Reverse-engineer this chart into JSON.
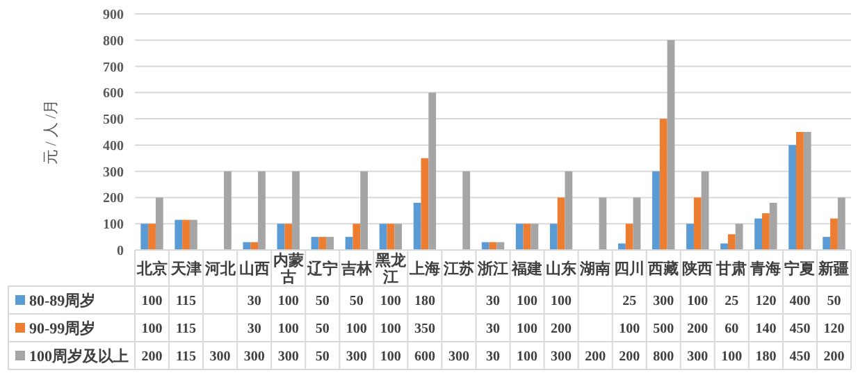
{
  "chart_data": {
    "type": "bar",
    "ylabel": "元 / 人 /月",
    "categories": [
      "北京",
      "天津",
      "河北",
      "山西",
      "内蒙古",
      "辽宁",
      "吉林",
      "黑龙江",
      "上海",
      "江苏",
      "浙江",
      "福建",
      "山东",
      "湖南",
      "四川",
      "西藏",
      "陕西",
      "甘肃",
      "青海",
      "宁夏",
      "新疆"
    ],
    "series": [
      {
        "name": "80-89周岁",
        "color": "#5b9bd5",
        "values": [
          100,
          115,
          null,
          30,
          100,
          50,
          50,
          100,
          180,
          null,
          30,
          100,
          100,
          null,
          25,
          300,
          100,
          25,
          120,
          400,
          50
        ]
      },
      {
        "name": "90-99周岁",
        "color": "#ed7d31",
        "values": [
          100,
          115,
          null,
          30,
          100,
          50,
          100,
          100,
          350,
          null,
          30,
          100,
          200,
          null,
          100,
          500,
          200,
          60,
          140,
          450,
          120
        ]
      },
      {
        "name": "100周岁及以上",
        "color": "#a5a5a5",
        "values": [
          200,
          115,
          300,
          300,
          300,
          50,
          300,
          100,
          600,
          300,
          30,
          100,
          300,
          200,
          200,
          800,
          300,
          100,
          180,
          450,
          200
        ]
      }
    ],
    "ylim": [
      0,
      900
    ],
    "yticks": [
      0,
      100,
      200,
      300,
      400,
      500,
      600,
      700,
      800,
      900
    ],
    "grid": "y",
    "legend": "bottom left",
    "data_labels": true
  }
}
